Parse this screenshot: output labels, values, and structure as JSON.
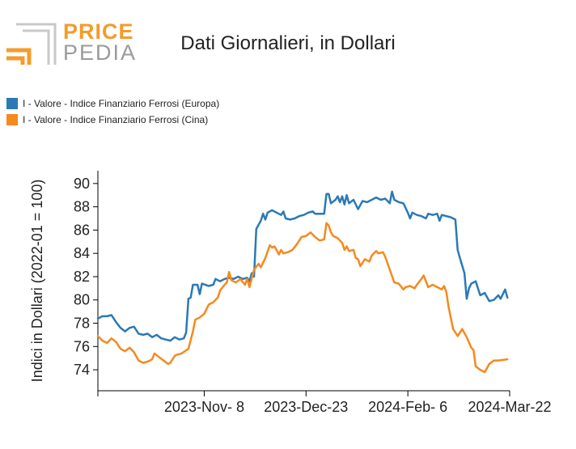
{
  "logo": {
    "word1": "PRICE",
    "word2": "PEDIA"
  },
  "colors": {
    "europa": "#2b79b6",
    "cina": "#f5891f",
    "logo_orange": "#f39c2b",
    "logo_gray": "#9a9a9a"
  },
  "chart_data": {
    "type": "line",
    "title": "Dati Giornalieri, in Dollari",
    "ylabel": "Indici in Dollari (2022-01 = 100)",
    "xlabel": "",
    "ylim": [
      72.2,
      91.1
    ],
    "yticks": [
      74,
      76,
      78,
      80,
      82,
      84,
      86,
      88,
      90
    ],
    "x_range": [
      "2023-09-22",
      "2024-03-22"
    ],
    "xticks": [
      {
        "date": "2023-11-08",
        "label": "2023-Nov- 8"
      },
      {
        "date": "2023-12-23",
        "label": "2023-Dec-23"
      },
      {
        "date": "2024-02-06",
        "label": "2024-Feb- 6"
      },
      {
        "date": "2024-03-22",
        "label": "2024-Mar-22"
      }
    ],
    "legend_position": "top-left",
    "grid": false,
    "series": [
      {
        "name": "I - Valore - Indice Finanziario Ferrosi (Europa)",
        "color": "#2b79b6",
        "points": [
          [
            "2023-09-22",
            78.4
          ],
          [
            "2023-09-24",
            78.6
          ],
          [
            "2023-09-26",
            78.6
          ],
          [
            "2023-09-28",
            78.7
          ],
          [
            "2023-09-30",
            78.1
          ],
          [
            "2023-10-02",
            77.6
          ],
          [
            "2023-10-04",
            77.3
          ],
          [
            "2023-10-06",
            77.6
          ],
          [
            "2023-10-08",
            77.7
          ],
          [
            "2023-10-10",
            77.1
          ],
          [
            "2023-10-12",
            77.0
          ],
          [
            "2023-10-14",
            77.1
          ],
          [
            "2023-10-16",
            76.8
          ],
          [
            "2023-10-18",
            77.0
          ],
          [
            "2023-10-20",
            76.7
          ],
          [
            "2023-10-22",
            76.6
          ],
          [
            "2023-10-24",
            76.5
          ],
          [
            "2023-10-26",
            76.8
          ],
          [
            "2023-10-28",
            76.6
          ],
          [
            "2023-10-30",
            76.7
          ],
          [
            "2023-10-31",
            77.2
          ],
          [
            "2023-11-01",
            80.1
          ],
          [
            "2023-11-02",
            80.2
          ],
          [
            "2023-11-03",
            81.3
          ],
          [
            "2023-11-05",
            81.3
          ],
          [
            "2023-11-06",
            80.5
          ],
          [
            "2023-11-07",
            81.4
          ],
          [
            "2023-11-10",
            81.2
          ],
          [
            "2023-11-12",
            81.3
          ],
          [
            "2023-11-13",
            81.8
          ],
          [
            "2023-11-15",
            81.6
          ],
          [
            "2023-11-17",
            81.8
          ],
          [
            "2023-11-19",
            81.9
          ],
          [
            "2023-11-21",
            81.8
          ],
          [
            "2023-11-23",
            82.0
          ],
          [
            "2023-11-25",
            81.8
          ],
          [
            "2023-11-27",
            81.9
          ],
          [
            "2023-11-28",
            81.6
          ],
          [
            "2023-11-29",
            82.3
          ],
          [
            "2023-11-30",
            82.0
          ],
          [
            "2023-12-01",
            86.1
          ],
          [
            "2023-12-03",
            86.8
          ],
          [
            "2023-12-04",
            87.4
          ],
          [
            "2023-12-05",
            86.9
          ],
          [
            "2023-12-06",
            87.5
          ],
          [
            "2023-12-08",
            87.7
          ],
          [
            "2023-12-10",
            87.5
          ],
          [
            "2023-12-12",
            87.3
          ],
          [
            "2023-12-13",
            87.6
          ],
          [
            "2023-12-14",
            87.0
          ],
          [
            "2023-12-16",
            86.9
          ],
          [
            "2023-12-18",
            87.0
          ],
          [
            "2023-12-20",
            87.2
          ],
          [
            "2023-12-22",
            87.3
          ],
          [
            "2023-12-24",
            87.5
          ],
          [
            "2023-12-26",
            87.6
          ],
          [
            "2023-12-27",
            87.4
          ],
          [
            "2023-12-29",
            87.4
          ],
          [
            "2023-12-31",
            87.4
          ],
          [
            "2024-01-01",
            89.1
          ],
          [
            "2024-01-02",
            89.1
          ],
          [
            "2024-01-03",
            88.3
          ],
          [
            "2024-01-05",
            88.6
          ],
          [
            "2024-01-06",
            88.9
          ],
          [
            "2024-01-07",
            88.4
          ],
          [
            "2024-01-08",
            88.9
          ],
          [
            "2024-01-09",
            88.2
          ],
          [
            "2024-01-10",
            89.0
          ],
          [
            "2024-01-11",
            88.3
          ],
          [
            "2024-01-13",
            88.6
          ],
          [
            "2024-01-15",
            87.8
          ],
          [
            "2024-01-17",
            88.5
          ],
          [
            "2024-01-19",
            88.4
          ],
          [
            "2024-01-21",
            88.6
          ],
          [
            "2024-01-23",
            88.8
          ],
          [
            "2024-01-25",
            88.6
          ],
          [
            "2024-01-27",
            88.7
          ],
          [
            "2024-01-29",
            88.3
          ],
          [
            "2024-01-30",
            89.3
          ],
          [
            "2024-01-31",
            88.6
          ],
          [
            "2024-02-02",
            88.4
          ],
          [
            "2024-02-04",
            88.3
          ],
          [
            "2024-02-06",
            87.5
          ],
          [
            "2024-02-07",
            87.0
          ],
          [
            "2024-02-08",
            87.5
          ],
          [
            "2024-02-10",
            87.3
          ],
          [
            "2024-02-12",
            87.2
          ],
          [
            "2024-02-14",
            87.0
          ],
          [
            "2024-02-15",
            87.4
          ],
          [
            "2024-02-17",
            87.3
          ],
          [
            "2024-02-19",
            87.4
          ],
          [
            "2024-02-20",
            86.8
          ],
          [
            "2024-02-21",
            87.3
          ],
          [
            "2024-02-23",
            87.2
          ],
          [
            "2024-02-25",
            87.1
          ],
          [
            "2024-02-27",
            86.9
          ],
          [
            "2024-02-28",
            84.3
          ],
          [
            "2024-02-29",
            83.6
          ],
          [
            "2024-03-02",
            82.3
          ],
          [
            "2024-03-03",
            80.1
          ],
          [
            "2024-03-04",
            81.0
          ],
          [
            "2024-03-05",
            81.4
          ],
          [
            "2024-03-07",
            81.6
          ],
          [
            "2024-03-09",
            80.4
          ],
          [
            "2024-03-11",
            80.6
          ],
          [
            "2024-03-13",
            79.9
          ],
          [
            "2024-03-15",
            80.0
          ],
          [
            "2024-03-17",
            80.4
          ],
          [
            "2024-03-18",
            80.1
          ],
          [
            "2024-03-20",
            80.9
          ],
          [
            "2024-03-21",
            80.2
          ]
        ]
      },
      {
        "name": "I - Valore - Indice Finanziario Ferrosi (Cina)",
        "color": "#f5891f",
        "points": [
          [
            "2023-09-22",
            76.9
          ],
          [
            "2023-09-24",
            76.5
          ],
          [
            "2023-09-26",
            76.3
          ],
          [
            "2023-09-28",
            76.7
          ],
          [
            "2023-09-30",
            76.4
          ],
          [
            "2023-10-02",
            75.8
          ],
          [
            "2023-10-04",
            75.6
          ],
          [
            "2023-10-06",
            75.9
          ],
          [
            "2023-10-08",
            75.5
          ],
          [
            "2023-10-10",
            74.8
          ],
          [
            "2023-10-12",
            74.6
          ],
          [
            "2023-10-14",
            74.7
          ],
          [
            "2023-10-16",
            74.9
          ],
          [
            "2023-10-17",
            75.4
          ],
          [
            "2023-10-19",
            75.1
          ],
          [
            "2023-10-21",
            74.8
          ],
          [
            "2023-10-23",
            74.5
          ],
          [
            "2023-10-24",
            74.6
          ],
          [
            "2023-10-26",
            75.2
          ],
          [
            "2023-10-27",
            75.3
          ],
          [
            "2023-10-29",
            75.4
          ],
          [
            "2023-11-01",
            75.8
          ],
          [
            "2023-11-03",
            77.3
          ],
          [
            "2023-11-04",
            78.3
          ],
          [
            "2023-11-06",
            78.5
          ],
          [
            "2023-11-08",
            78.8
          ],
          [
            "2023-11-10",
            79.6
          ],
          [
            "2023-11-12",
            79.8
          ],
          [
            "2023-11-14",
            80.2
          ],
          [
            "2023-11-15",
            80.8
          ],
          [
            "2023-11-17",
            81.3
          ],
          [
            "2023-11-18",
            81.5
          ],
          [
            "2023-11-19",
            82.4
          ],
          [
            "2023-11-20",
            81.7
          ],
          [
            "2023-11-22",
            81.5
          ],
          [
            "2023-11-24",
            81.8
          ],
          [
            "2023-11-26",
            81.3
          ],
          [
            "2023-11-27",
            81.8
          ],
          [
            "2023-11-28",
            81.1
          ],
          [
            "2023-11-30",
            82.6
          ],
          [
            "2023-12-02",
            83.1
          ],
          [
            "2023-12-03",
            82.8
          ],
          [
            "2023-12-05",
            83.6
          ],
          [
            "2023-12-07",
            84.7
          ],
          [
            "2023-12-08",
            84.5
          ],
          [
            "2023-12-09",
            84.6
          ],
          [
            "2023-12-10",
            84.3
          ],
          [
            "2023-12-11",
            83.9
          ],
          [
            "2023-12-12",
            84.3
          ],
          [
            "2023-12-13",
            84.0
          ],
          [
            "2023-12-15",
            84.1
          ],
          [
            "2023-12-17",
            84.3
          ],
          [
            "2023-12-19",
            84.8
          ],
          [
            "2023-12-21",
            85.4
          ],
          [
            "2023-12-23",
            85.5
          ],
          [
            "2023-12-25",
            85.8
          ],
          [
            "2023-12-27",
            85.4
          ],
          [
            "2023-12-29",
            85.1
          ],
          [
            "2023-12-31",
            85.2
          ],
          [
            "2024-01-01",
            86.6
          ],
          [
            "2024-01-02",
            86.4
          ],
          [
            "2024-01-03",
            85.8
          ],
          [
            "2024-01-04",
            85.5
          ],
          [
            "2024-01-06",
            85.3
          ],
          [
            "2024-01-08",
            84.9
          ],
          [
            "2024-01-09",
            84.3
          ],
          [
            "2024-01-10",
            84.6
          ],
          [
            "2024-01-11",
            84.2
          ],
          [
            "2024-01-13",
            84.3
          ],
          [
            "2024-01-14",
            83.6
          ],
          [
            "2024-01-15",
            83.5
          ],
          [
            "2024-01-16",
            82.9
          ],
          [
            "2024-01-18",
            83.5
          ],
          [
            "2024-01-20",
            83.3
          ],
          [
            "2024-01-21",
            83.8
          ],
          [
            "2024-01-23",
            84.2
          ],
          [
            "2024-01-24",
            84.0
          ],
          [
            "2024-01-26",
            84.1
          ],
          [
            "2024-01-27",
            83.7
          ],
          [
            "2024-01-29",
            82.6
          ],
          [
            "2024-01-31",
            81.5
          ],
          [
            "2024-02-02",
            81.4
          ],
          [
            "2024-02-04",
            80.9
          ],
          [
            "2024-02-05",
            81.1
          ],
          [
            "2024-02-07",
            81.2
          ],
          [
            "2024-02-09",
            81.0
          ],
          [
            "2024-02-10",
            81.3
          ],
          [
            "2024-02-12",
            81.8
          ],
          [
            "2024-02-13",
            82.1
          ],
          [
            "2024-02-14",
            81.6
          ],
          [
            "2024-02-15",
            81.1
          ],
          [
            "2024-02-17",
            81.3
          ],
          [
            "2024-02-19",
            81.1
          ],
          [
            "2024-02-21",
            80.9
          ],
          [
            "2024-02-22",
            81.2
          ],
          [
            "2024-02-23",
            80.7
          ],
          [
            "2024-02-24",
            79.4
          ],
          [
            "2024-02-26",
            77.5
          ],
          [
            "2024-02-27",
            77.2
          ],
          [
            "2024-02-28",
            76.9
          ],
          [
            "2024-03-01",
            77.5
          ],
          [
            "2024-03-03",
            76.8
          ],
          [
            "2024-03-05",
            75.9
          ],
          [
            "2024-03-06",
            75.7
          ],
          [
            "2024-03-07",
            74.3
          ],
          [
            "2024-03-09",
            74.0
          ],
          [
            "2024-03-11",
            73.8
          ],
          [
            "2024-03-13",
            74.5
          ],
          [
            "2024-03-15",
            74.8
          ],
          [
            "2024-03-17",
            74.8
          ],
          [
            "2024-03-21",
            74.9
          ]
        ]
      }
    ]
  }
}
